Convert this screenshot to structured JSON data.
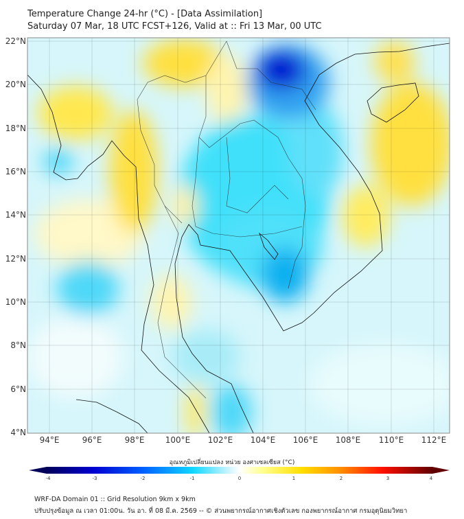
{
  "header": {
    "title": "Temperature Change 24-hr (°C) - [Data Assimilation]",
    "subtitle": "Saturday 07 Mar, 18 UTC FCST+126, Valid at :: Fri 13 Mar, 00 UTC"
  },
  "map": {
    "lon_ticks": [
      "94°E",
      "96°E",
      "98°E",
      "100°E",
      "102°E",
      "104°E",
      "106°E",
      "108°E",
      "110°E",
      "112°E"
    ],
    "lat_ticks": [
      "22°N",
      "20°N",
      "18°N",
      "16°N",
      "14°N",
      "12°N",
      "10°N",
      "8°N",
      "6°N",
      "4°N"
    ]
  },
  "colorbar": {
    "label": "อุณหภูมิเปลี่ยนแปลง หน่วย องศาเซลเซียส (°C)",
    "ticks": [
      "-4",
      "-3",
      "-2",
      "-1",
      "0",
      "1",
      "2",
      "3",
      "4"
    ],
    "colors": [
      "#00005a",
      "#0000c8",
      "#0050ff",
      "#00c8ff",
      "#b4f0ff",
      "#ffffff",
      "#ffff80",
      "#ffd200",
      "#ff7800",
      "#ff0000",
      "#640000"
    ]
  },
  "footer": {
    "line1": "WRF-DA Domain 01 :: Grid Resolution 9km x 9km",
    "line2": "ปรับปรุงข้อมูล ณ เวลา 01:00น. วัน อา. ที่ 08 มี.ค. 2569 -- © ส่วนพยากรณ์อากาศเชิงตัวเลข กองพยากรณ์อากาศ กรมอุตุนิยมวิทยา"
  }
}
